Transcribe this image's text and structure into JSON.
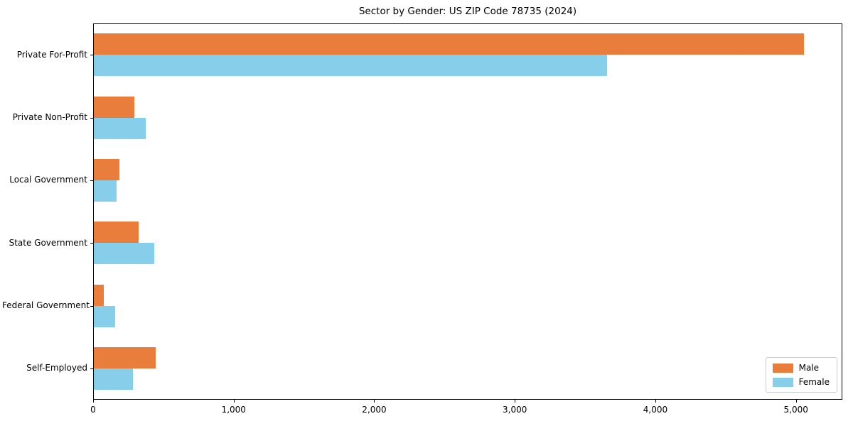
{
  "title": "Sector by Gender: US ZIP Code 78735 (2024)",
  "chart_data": {
    "type": "bar",
    "orientation": "horizontal",
    "title": "Sector by Gender: US ZIP Code 78735 (2024)",
    "categories": [
      "Private For-Profit",
      "Private Non-Profit",
      "Local Government",
      "State Government",
      "Federal Government",
      "Self-Employed"
    ],
    "series": [
      {
        "name": "Male",
        "color": "#e87d3c",
        "values": [
          5050,
          290,
          180,
          320,
          70,
          440
        ]
      },
      {
        "name": "Female",
        "color": "#87ceeb",
        "values": [
          3650,
          370,
          160,
          430,
          150,
          280
        ]
      }
    ],
    "xlim": [
      0,
      5320
    ],
    "xticks": [
      0,
      1000,
      2000,
      3000,
      4000,
      5000
    ],
    "xtick_labels": [
      "0",
      "1,000",
      "2,000",
      "3,000",
      "4,000",
      "5,000"
    ],
    "xlabel": "",
    "ylabel": "",
    "grid": false,
    "legend_position": "lower right"
  }
}
